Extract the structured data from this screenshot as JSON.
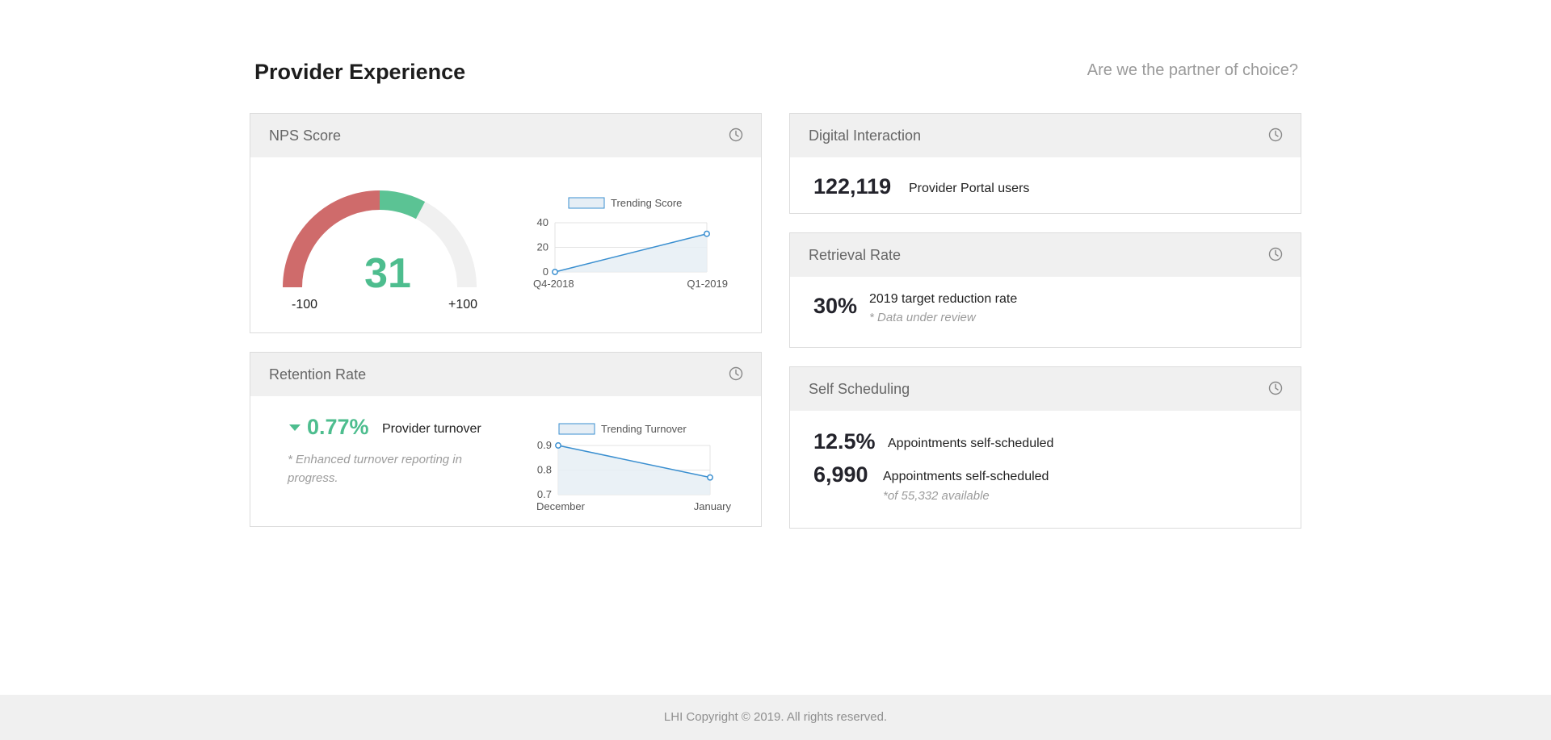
{
  "header": {
    "title": "Provider Experience",
    "subtitle": "Are we the partner of choice?"
  },
  "nps_card": {
    "title": "NPS Score",
    "gauge": {
      "value": "31",
      "min_label": "-100",
      "max_label": "+100",
      "score": 31,
      "min": -100,
      "max": 100,
      "colors": {
        "negative": "#cf6b6b",
        "positive": "#5bc394",
        "track": "#f0f0f0"
      }
    }
  },
  "retention_card": {
    "title": "Retention Rate",
    "value": "0.77%",
    "label": "Provider turnover",
    "note": "* Enhanced turnover reporting in progress.",
    "trend_icon": "caret-down-icon",
    "accent": "#4dbd8e"
  },
  "digital_card": {
    "title": "Digital Interaction",
    "value": "122,119",
    "label": "Provider Portal users"
  },
  "retrieval_card": {
    "title": "Retrieval Rate",
    "value": "30%",
    "label": "2019 target reduction rate",
    "note": "* Data under review"
  },
  "scheduling_card": {
    "title": "Self Scheduling",
    "rows": [
      {
        "value": "12.5%",
        "label": "Appointments self-scheduled"
      },
      {
        "value": "6,990",
        "label": "Appointments self-scheduled"
      }
    ],
    "note": "*of 55,332 available"
  },
  "footer": {
    "text": "LHI Copyright © 2019. All rights reserved."
  },
  "chart_data": [
    {
      "type": "area",
      "categories": [
        "Q4-2018",
        "Q1-2019"
      ],
      "series": [
        {
          "name": "Trending Score",
          "values": [
            0,
            31
          ]
        }
      ],
      "yticks": [
        "40",
        "20",
        "0"
      ],
      "ylim": [
        0,
        40
      ],
      "grid": true,
      "legend": "top"
    },
    {
      "type": "area",
      "categories": [
        "December",
        "January"
      ],
      "series": [
        {
          "name": "Trending Turnover",
          "values": [
            0.9,
            0.77
          ]
        }
      ],
      "yticks": [
        "0.9",
        "0.8",
        "0.7"
      ],
      "ylim": [
        0.7,
        0.9
      ],
      "grid": true,
      "legend": "top"
    }
  ]
}
